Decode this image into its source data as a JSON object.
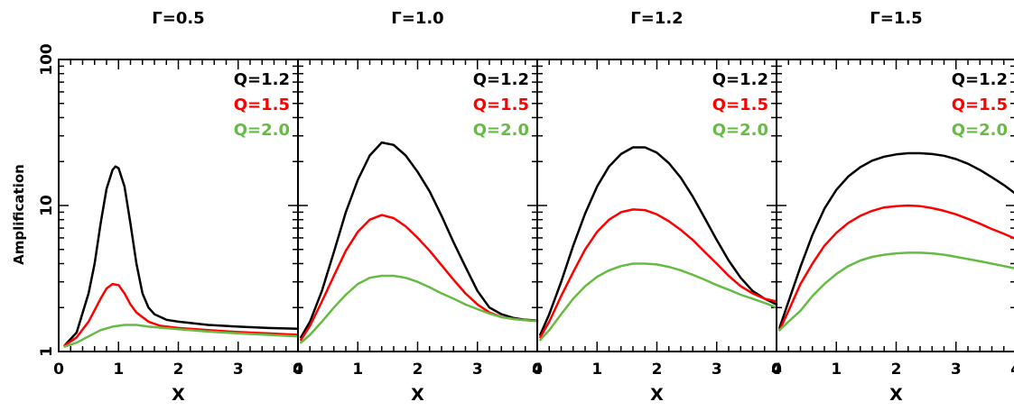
{
  "chart_data": [
    {
      "type": "line",
      "title": "Γ=0.5",
      "xlabel": "X",
      "ylabel": "Amplification",
      "xlim": [
        0,
        4
      ],
      "ylim": [
        1,
        100
      ],
      "yscale": "log",
      "xticks": [
        "0",
        "1",
        "2",
        "3",
        "4"
      ],
      "yticks": [
        "1",
        "10",
        "100"
      ],
      "legend_placement": "top-right",
      "series": [
        {
          "name": "Q=1.2",
          "color": "#000000",
          "x": [
            0.1,
            0.3,
            0.5,
            0.6,
            0.7,
            0.8,
            0.9,
            0.95,
            1.0,
            1.1,
            1.2,
            1.3,
            1.4,
            1.5,
            1.6,
            1.8,
            2.0,
            2.5,
            3.0,
            3.5,
            4.0
          ],
          "y": [
            1.1,
            1.35,
            2.5,
            4.0,
            7.5,
            13.0,
            17.5,
            18.5,
            18.0,
            13.5,
            7.5,
            4.0,
            2.5,
            2.0,
            1.8,
            1.65,
            1.6,
            1.52,
            1.48,
            1.45,
            1.43
          ]
        },
        {
          "name": "Q=1.5",
          "color": "#ff0000",
          "x": [
            0.1,
            0.3,
            0.5,
            0.7,
            0.8,
            0.9,
            1.0,
            1.1,
            1.2,
            1.3,
            1.5,
            1.7,
            2.0,
            2.5,
            3.0,
            3.5,
            4.0
          ],
          "y": [
            1.1,
            1.25,
            1.6,
            2.3,
            2.7,
            2.9,
            2.85,
            2.5,
            2.1,
            1.85,
            1.6,
            1.5,
            1.45,
            1.4,
            1.36,
            1.33,
            1.3
          ]
        },
        {
          "name": "Q=2.0",
          "color": "#66bb44",
          "x": [
            0.1,
            0.3,
            0.5,
            0.7,
            0.9,
            1.1,
            1.3,
            1.5,
            2.0,
            2.5,
            3.0,
            3.5,
            4.0
          ],
          "y": [
            1.08,
            1.15,
            1.27,
            1.4,
            1.48,
            1.52,
            1.52,
            1.48,
            1.42,
            1.37,
            1.33,
            1.3,
            1.27
          ]
        }
      ]
    },
    {
      "type": "line",
      "title": "Γ=1.0",
      "xlabel": "X",
      "xlim": [
        0,
        4
      ],
      "ylim": [
        1,
        100
      ],
      "yscale": "log",
      "xticks": [
        "0",
        "1",
        "2",
        "3",
        "4"
      ],
      "legend_placement": "top-right",
      "series": [
        {
          "name": "Q=1.2",
          "color": "#000000",
          "x": [
            0.05,
            0.2,
            0.4,
            0.6,
            0.8,
            1.0,
            1.2,
            1.4,
            1.6,
            1.8,
            2.0,
            2.2,
            2.4,
            2.6,
            2.8,
            3.0,
            3.2,
            3.4,
            3.6,
            3.8,
            4.0
          ],
          "y": [
            1.25,
            1.6,
            2.6,
            4.8,
            9.0,
            15.0,
            22.0,
            27.0,
            26.0,
            22.0,
            17.0,
            12.5,
            8.5,
            5.6,
            3.8,
            2.6,
            2.0,
            1.8,
            1.7,
            1.65,
            1.63
          ]
        },
        {
          "name": "Q=1.5",
          "color": "#ff0000",
          "x": [
            0.05,
            0.2,
            0.4,
            0.6,
            0.8,
            1.0,
            1.2,
            1.4,
            1.6,
            1.8,
            2.0,
            2.2,
            2.4,
            2.6,
            2.8,
            3.0,
            3.2,
            3.4,
            3.6,
            3.8,
            4.0
          ],
          "y": [
            1.2,
            1.5,
            2.2,
            3.3,
            4.9,
            6.6,
            8.0,
            8.6,
            8.2,
            7.2,
            6.0,
            4.9,
            3.9,
            3.1,
            2.5,
            2.1,
            1.85,
            1.72,
            1.67,
            1.64,
            1.62
          ]
        },
        {
          "name": "Q=2.0",
          "color": "#66bb44",
          "x": [
            0.05,
            0.2,
            0.4,
            0.6,
            0.8,
            1.0,
            1.2,
            1.4,
            1.6,
            1.8,
            2.0,
            2.2,
            2.4,
            2.6,
            2.8,
            3.0,
            3.2,
            3.4,
            3.6,
            3.8,
            4.0
          ],
          "y": [
            1.15,
            1.3,
            1.6,
            2.0,
            2.45,
            2.9,
            3.2,
            3.3,
            3.3,
            3.2,
            3.0,
            2.75,
            2.5,
            2.3,
            2.1,
            1.95,
            1.82,
            1.72,
            1.67,
            1.64,
            1.62
          ]
        }
      ]
    },
    {
      "type": "line",
      "title": "Γ=1.2",
      "xlabel": "X",
      "xlim": [
        0,
        4
      ],
      "ylim": [
        1,
        100
      ],
      "yscale": "log",
      "xticks": [
        "0",
        "1",
        "2",
        "3",
        "4"
      ],
      "legend_placement": "top-right",
      "series": [
        {
          "name": "Q=1.2",
          "color": "#000000",
          "x": [
            0.05,
            0.2,
            0.4,
            0.6,
            0.8,
            1.0,
            1.2,
            1.4,
            1.6,
            1.8,
            2.0,
            2.2,
            2.4,
            2.6,
            2.8,
            3.0,
            3.2,
            3.4,
            3.6,
            3.8,
            4.0
          ],
          "y": [
            1.3,
            1.8,
            3.0,
            5.3,
            8.8,
            13.5,
            18.5,
            22.5,
            25.0,
            25.0,
            23.0,
            19.5,
            15.5,
            11.5,
            8.2,
            5.8,
            4.2,
            3.2,
            2.6,
            2.3,
            2.1
          ]
        },
        {
          "name": "Q=1.5",
          "color": "#ff0000",
          "x": [
            0.05,
            0.2,
            0.4,
            0.6,
            0.8,
            1.0,
            1.2,
            1.4,
            1.6,
            1.8,
            2.0,
            2.2,
            2.4,
            2.6,
            2.8,
            3.0,
            3.2,
            3.4,
            3.6,
            3.8,
            4.0
          ],
          "y": [
            1.25,
            1.6,
            2.4,
            3.5,
            5.0,
            6.6,
            8.0,
            9.0,
            9.4,
            9.3,
            8.7,
            7.8,
            6.8,
            5.8,
            4.8,
            4.0,
            3.3,
            2.8,
            2.5,
            2.3,
            2.2
          ]
        },
        {
          "name": "Q=2.0",
          "color": "#66bb44",
          "x": [
            0.05,
            0.2,
            0.4,
            0.6,
            0.8,
            1.0,
            1.2,
            1.4,
            1.6,
            1.8,
            2.0,
            2.2,
            2.4,
            2.6,
            2.8,
            3.0,
            3.2,
            3.4,
            3.6,
            3.8,
            4.0
          ],
          "y": [
            1.2,
            1.4,
            1.8,
            2.3,
            2.8,
            3.25,
            3.6,
            3.85,
            4.0,
            4.0,
            3.95,
            3.8,
            3.6,
            3.35,
            3.1,
            2.85,
            2.65,
            2.45,
            2.3,
            2.15,
            2.0
          ]
        }
      ]
    },
    {
      "type": "line",
      "title": "Γ=1.5",
      "xlabel": "X",
      "xlim": [
        0,
        4
      ],
      "ylim": [
        1,
        100
      ],
      "yscale": "log",
      "xticks": [
        "0",
        "1",
        "2",
        "3",
        "4"
      ],
      "legend_placement": "top-right",
      "series": [
        {
          "name": "Q=1.2",
          "color": "#000000",
          "x": [
            0.05,
            0.2,
            0.4,
            0.6,
            0.8,
            1.0,
            1.2,
            1.4,
            1.6,
            1.8,
            2.0,
            2.2,
            2.4,
            2.6,
            2.8,
            3.0,
            3.2,
            3.4,
            3.6,
            3.8,
            4.0
          ],
          "y": [
            1.45,
            2.2,
            3.8,
            6.3,
            9.5,
            12.8,
            15.8,
            18.3,
            20.3,
            21.6,
            22.4,
            22.8,
            22.8,
            22.5,
            21.9,
            20.8,
            19.3,
            17.5,
            15.6,
            13.8,
            12.0
          ]
        },
        {
          "name": "Q=1.5",
          "color": "#ff0000",
          "x": [
            0.05,
            0.2,
            0.4,
            0.6,
            0.8,
            1.0,
            1.2,
            1.4,
            1.6,
            1.8,
            2.0,
            2.2,
            2.4,
            2.6,
            2.8,
            3.0,
            3.2,
            3.4,
            3.6,
            3.8,
            4.0
          ],
          "y": [
            1.4,
            1.9,
            2.9,
            4.0,
            5.3,
            6.5,
            7.6,
            8.5,
            9.2,
            9.7,
            9.9,
            10.0,
            9.9,
            9.6,
            9.2,
            8.7,
            8.1,
            7.5,
            6.9,
            6.4,
            5.9
          ]
        },
        {
          "name": "Q=2.0",
          "color": "#66bb44",
          "x": [
            0.05,
            0.2,
            0.4,
            0.6,
            0.8,
            1.0,
            1.2,
            1.4,
            1.6,
            1.8,
            2.0,
            2.2,
            2.4,
            2.6,
            2.8,
            3.0,
            3.2,
            3.4,
            3.6,
            3.8,
            4.0
          ],
          "y": [
            1.4,
            1.6,
            1.9,
            2.4,
            2.9,
            3.4,
            3.85,
            4.2,
            4.45,
            4.6,
            4.7,
            4.75,
            4.75,
            4.7,
            4.6,
            4.45,
            4.3,
            4.15,
            4.0,
            3.85,
            3.7
          ]
        }
      ]
    }
  ]
}
